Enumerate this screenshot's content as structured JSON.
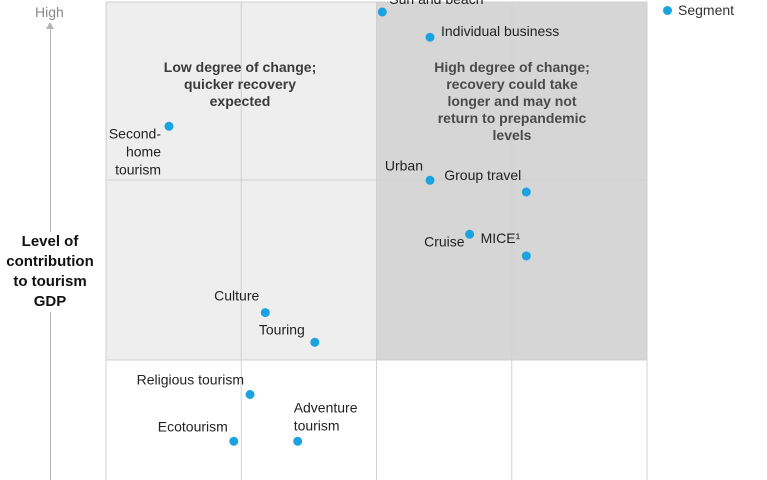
{
  "chart_data": {
    "type": "scatter",
    "y_axis_high_label": "High",
    "ylabel": "Level of contribution to tourism GDP",
    "legend": {
      "label": "Segment",
      "position": "top-right"
    },
    "colors": {
      "point": "#1aa3e0",
      "quadrant_light": "#eeeeee",
      "quadrant_dark": "#d6d6d6",
      "grid": "#d0d0d0"
    },
    "quadrant_labels": {
      "top_left": "Low degree of change; quicker recovery expected",
      "top_right": "High degree of change; recovery could take longer and may not return to prepandemic levels"
    },
    "xlim": [
      0,
      6
    ],
    "ylim": [
      0,
      5.3
    ],
    "points": [
      {
        "label": "Sun and beach",
        "x": 3.07,
        "y": 5.2
      },
      {
        "label": "Individual business",
        "x": 3.6,
        "y": 4.92
      },
      {
        "label": "Second-home tourism",
        "x": 0.7,
        "y": 3.93
      },
      {
        "label": "Urban",
        "x": 3.6,
        "y": 3.33
      },
      {
        "label": "Group travel",
        "x": 4.67,
        "y": 3.2
      },
      {
        "label": "Cruise",
        "x": 4.04,
        "y": 2.73
      },
      {
        "label": "MICE¹",
        "x": 4.67,
        "y": 2.49
      },
      {
        "label": "Culture",
        "x": 1.77,
        "y": 1.86
      },
      {
        "label": "Touring",
        "x": 2.32,
        "y": 1.53
      },
      {
        "label": "Religious tourism",
        "x": 1.6,
        "y": 0.95
      },
      {
        "label": "Ecotourism",
        "x": 1.42,
        "y": 0.43
      },
      {
        "label": "Adventure tourism",
        "x": 2.13,
        "y": 0.43
      }
    ]
  }
}
